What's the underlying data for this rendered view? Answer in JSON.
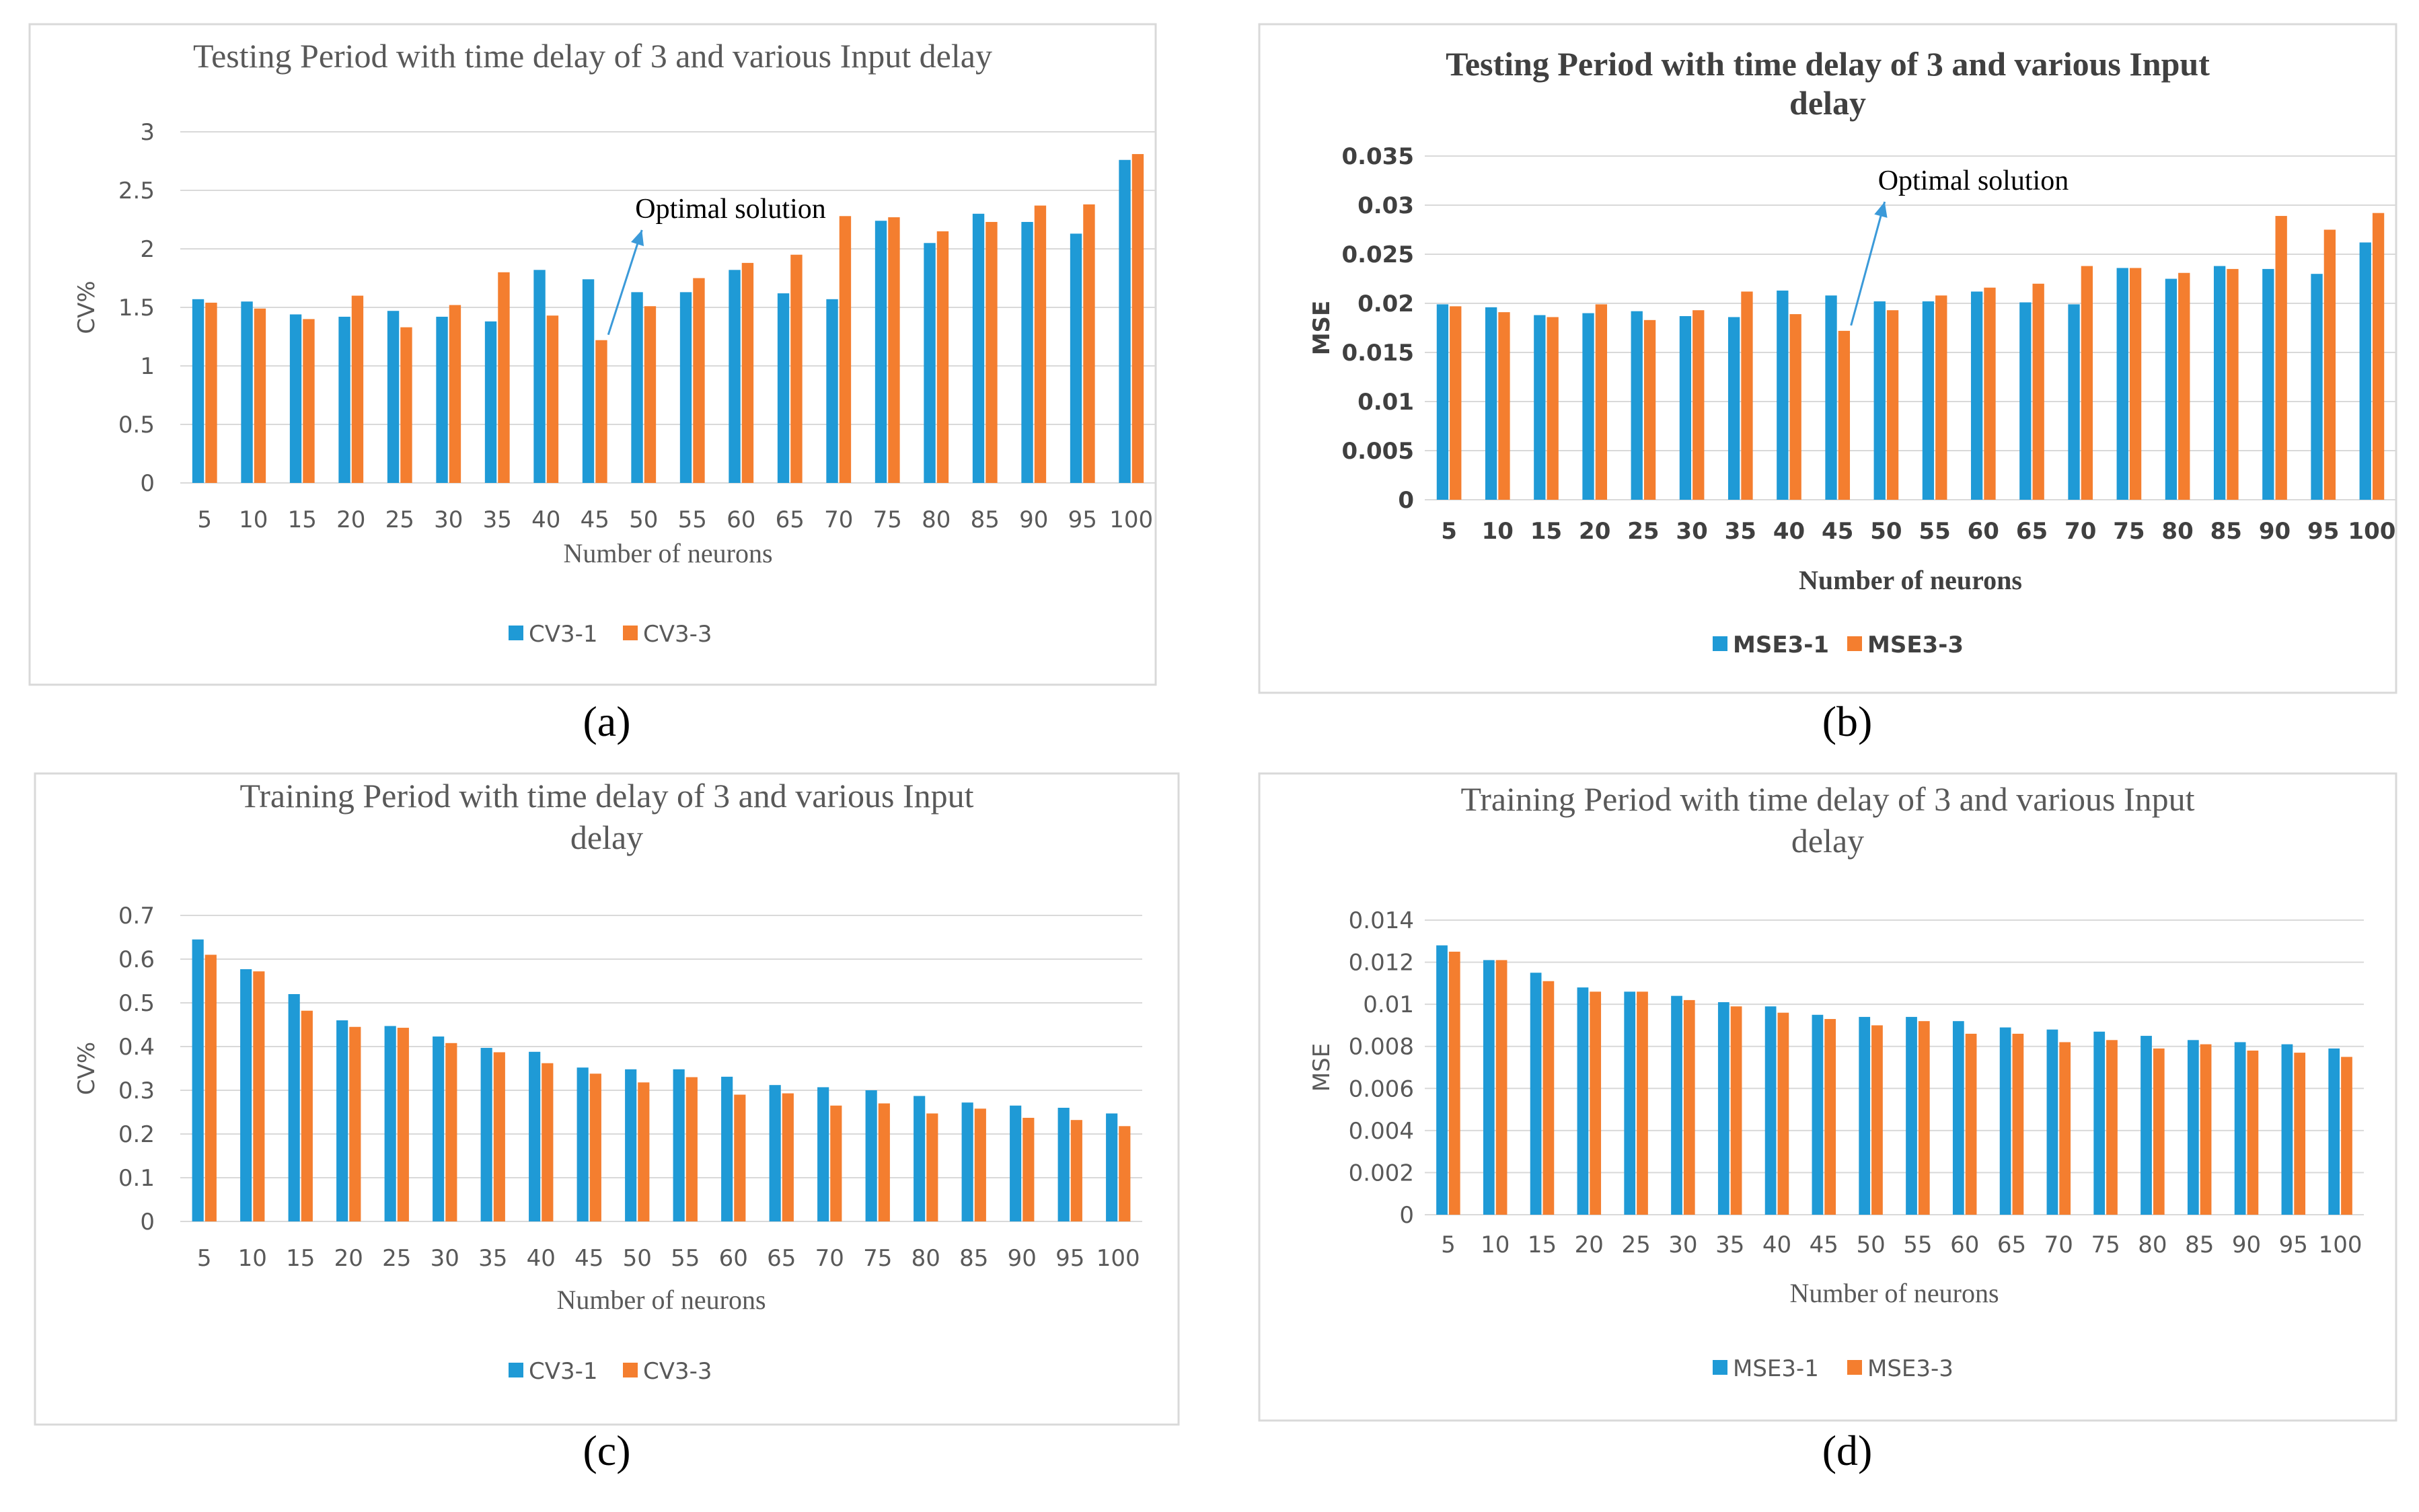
{
  "chart_data": [
    {
      "id": "a",
      "type": "bar",
      "panel_label": "(a)",
      "title": [
        "Testing Period with time delay of 3 and various Input delay"
      ],
      "xlabel": "Number of neurons",
      "ylabel": "CV%",
      "ylim": [
        0,
        3
      ],
      "yticks": [
        "0",
        "0.5",
        "1",
        "1.5",
        "2",
        "2.5",
        "3"
      ],
      "categories": [
        "5",
        "10",
        "15",
        "20",
        "25",
        "30",
        "35",
        "40",
        "45",
        "50",
        "55",
        "60",
        "65",
        "70",
        "75",
        "80",
        "85",
        "90",
        "95",
        "100"
      ],
      "series": [
        {
          "name": "CV3-1",
          "color": "#1f9ad6",
          "values": [
            1.57,
            1.55,
            1.44,
            1.42,
            1.47,
            1.42,
            1.38,
            1.82,
            1.74,
            1.63,
            1.63,
            1.82,
            1.62,
            1.57,
            2.24,
            2.05,
            2.3,
            2.23,
            2.13,
            2.76
          ]
        },
        {
          "name": "CV3-3",
          "color": "#f47e2f",
          "values": [
            1.54,
            1.49,
            1.4,
            1.6,
            1.33,
            1.52,
            1.8,
            1.43,
            1.22,
            1.51,
            1.75,
            1.88,
            1.95,
            2.28,
            2.27,
            2.15,
            2.23,
            2.37,
            2.38,
            2.81
          ]
        }
      ],
      "annotation": {
        "text": "Optimal solution",
        "category": "45"
      }
    },
    {
      "id": "b",
      "type": "bar",
      "panel_label": "(b)",
      "title": [
        "Testing Period with time delay of 3 and various Input",
        "delay"
      ],
      "xlabel": "Number of neurons",
      "ylabel": "MSE",
      "ylim": [
        0,
        0.035
      ],
      "yticks": [
        "0",
        "0.005",
        "0.01",
        "0.015",
        "0.02",
        "0.025",
        "0.03",
        "0.035"
      ],
      "categories": [
        "5",
        "10",
        "15",
        "20",
        "25",
        "30",
        "35",
        "40",
        "45",
        "50",
        "55",
        "60",
        "65",
        "70",
        "75",
        "80",
        "85",
        "90",
        "95",
        "100"
      ],
      "series": [
        {
          "name": "MSE3-1",
          "color": "#1f9ad6",
          "values": [
            0.0199,
            0.0196,
            0.0188,
            0.019,
            0.0192,
            0.0187,
            0.0186,
            0.0213,
            0.0208,
            0.0202,
            0.0202,
            0.0212,
            0.0201,
            0.0199,
            0.0236,
            0.0225,
            0.0238,
            0.0235,
            0.023,
            0.0262
          ]
        },
        {
          "name": "MSE3-3",
          "color": "#f47e2f",
          "values": [
            0.0197,
            0.0191,
            0.0186,
            0.0199,
            0.0183,
            0.0193,
            0.0212,
            0.0189,
            0.0172,
            0.0193,
            0.0208,
            0.0216,
            0.022,
            0.0238,
            0.0236,
            0.0231,
            0.0235,
            0.0289,
            0.0275,
            0.0292
          ]
        }
      ],
      "annotation": {
        "text": "Optimal solution",
        "category": "45"
      }
    },
    {
      "id": "c",
      "type": "bar",
      "panel_label": "(c)",
      "title": [
        "Training Period with time delay of 3 and various Input",
        "delay"
      ],
      "xlabel": "Number of neurons",
      "ylabel": "CV%",
      "ylim": [
        0,
        0.7
      ],
      "yticks": [
        "0",
        "0.1",
        "0.2",
        "0.3",
        "0.4",
        "0.5",
        "0.6",
        "0.7"
      ],
      "categories": [
        "5",
        "10",
        "15",
        "20",
        "25",
        "30",
        "35",
        "40",
        "45",
        "50",
        "55",
        "60",
        "65",
        "70",
        "75",
        "80",
        "85",
        "90",
        "95",
        "100"
      ],
      "series": [
        {
          "name": "CV3-1",
          "color": "#1f9ad6",
          "values": [
            0.645,
            0.577,
            0.52,
            0.46,
            0.447,
            0.423,
            0.397,
            0.388,
            0.352,
            0.348,
            0.348,
            0.331,
            0.312,
            0.307,
            0.3,
            0.287,
            0.272,
            0.265,
            0.26,
            0.247
          ]
        },
        {
          "name": "CV3-3",
          "color": "#f47e2f",
          "values": [
            0.61,
            0.572,
            0.482,
            0.445,
            0.443,
            0.408,
            0.387,
            0.362,
            0.338,
            0.318,
            0.33,
            0.29,
            0.293,
            0.265,
            0.27,
            0.247,
            0.258,
            0.237,
            0.232,
            0.218
          ]
        }
      ]
    },
    {
      "id": "d",
      "type": "bar",
      "panel_label": "(d)",
      "title": [
        "Training Period with time delay of 3 and various Input",
        "delay"
      ],
      "xlabel": "Number  of neurons",
      "ylabel": "MSE",
      "ylim": [
        0,
        0.014
      ],
      "yticks": [
        "0",
        "0.002",
        "0.004",
        "0.006",
        "0.008",
        "0.01",
        "0.012",
        "0.014"
      ],
      "categories": [
        "5",
        "10",
        "15",
        "20",
        "25",
        "30",
        "35",
        "40",
        "45",
        "50",
        "55",
        "60",
        "65",
        "70",
        "75",
        "80",
        "85",
        "90",
        "95",
        "100"
      ],
      "series": [
        {
          "name": "MSE3-1",
          "color": "#1f9ad6",
          "values": [
            0.0128,
            0.0121,
            0.0115,
            0.0108,
            0.0106,
            0.0104,
            0.0101,
            0.0099,
            0.0095,
            0.0094,
            0.0094,
            0.0092,
            0.0089,
            0.0088,
            0.0087,
            0.0085,
            0.0083,
            0.0082,
            0.0081,
            0.0079
          ]
        },
        {
          "name": "MSE3-3",
          "color": "#f47e2f",
          "values": [
            0.0125,
            0.0121,
            0.0111,
            0.0106,
            0.0106,
            0.0102,
            0.0099,
            0.0096,
            0.0093,
            0.009,
            0.0092,
            0.0086,
            0.0086,
            0.0082,
            0.0083,
            0.0079,
            0.0081,
            0.0078,
            0.0077,
            0.0075
          ]
        }
      ]
    }
  ]
}
